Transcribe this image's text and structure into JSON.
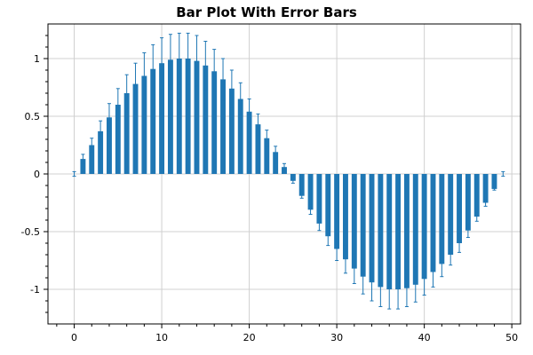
{
  "chart_data": {
    "type": "bar",
    "title": "Bar Plot With Error Bars",
    "xlabel": "",
    "ylabel": "",
    "xlim": [
      -3,
      51
    ],
    "ylim": [
      -1.3,
      1.3
    ],
    "grid": true,
    "legend": "none",
    "x_ticks": [
      0,
      10,
      20,
      30,
      40,
      50
    ],
    "x_tick_labels": [
      "0",
      "10",
      "20",
      "30",
      "40",
      "50"
    ],
    "y_ticks": [
      -1,
      -0.5,
      0,
      0.5,
      1
    ],
    "y_tick_labels": [
      "-1",
      "-0.5",
      "0",
      "0.5",
      "1"
    ],
    "bar_color": "#1f77b4",
    "x": [
      0,
      1,
      2,
      3,
      4,
      5,
      6,
      7,
      8,
      9,
      10,
      11,
      12,
      13,
      14,
      15,
      16,
      17,
      18,
      19,
      20,
      21,
      22,
      23,
      24,
      25,
      26,
      27,
      28,
      29,
      30,
      31,
      32,
      33,
      34,
      35,
      36,
      37,
      38,
      39,
      40,
      41,
      42,
      43,
      44,
      45,
      46,
      47,
      48,
      49
    ],
    "values": [
      0.0,
      0.13,
      0.25,
      0.37,
      0.49,
      0.6,
      0.7,
      0.78,
      0.85,
      0.91,
      0.96,
      0.99,
      1.0,
      1.0,
      0.98,
      0.94,
      0.89,
      0.82,
      0.74,
      0.65,
      0.54,
      0.43,
      0.31,
      0.19,
      0.06,
      -0.06,
      -0.19,
      -0.31,
      -0.43,
      -0.54,
      -0.65,
      -0.74,
      -0.82,
      -0.89,
      -0.94,
      -0.98,
      -1.0,
      -1.0,
      -0.99,
      -0.96,
      -0.91,
      -0.85,
      -0.78,
      -0.7,
      -0.6,
      -0.49,
      -0.37,
      -0.25,
      -0.13,
      0.0
    ],
    "errors": [
      0.02,
      0.04,
      0.06,
      0.09,
      0.12,
      0.14,
      0.16,
      0.18,
      0.2,
      0.21,
      0.22,
      0.22,
      0.22,
      0.22,
      0.22,
      0.21,
      0.19,
      0.18,
      0.16,
      0.14,
      0.11,
      0.09,
      0.07,
      0.05,
      0.03,
      0.02,
      0.02,
      0.04,
      0.06,
      0.08,
      0.1,
      0.12,
      0.13,
      0.15,
      0.16,
      0.17,
      0.17,
      0.17,
      0.16,
      0.15,
      0.14,
      0.13,
      0.11,
      0.09,
      0.08,
      0.06,
      0.04,
      0.03,
      0.01,
      0.02
    ]
  }
}
